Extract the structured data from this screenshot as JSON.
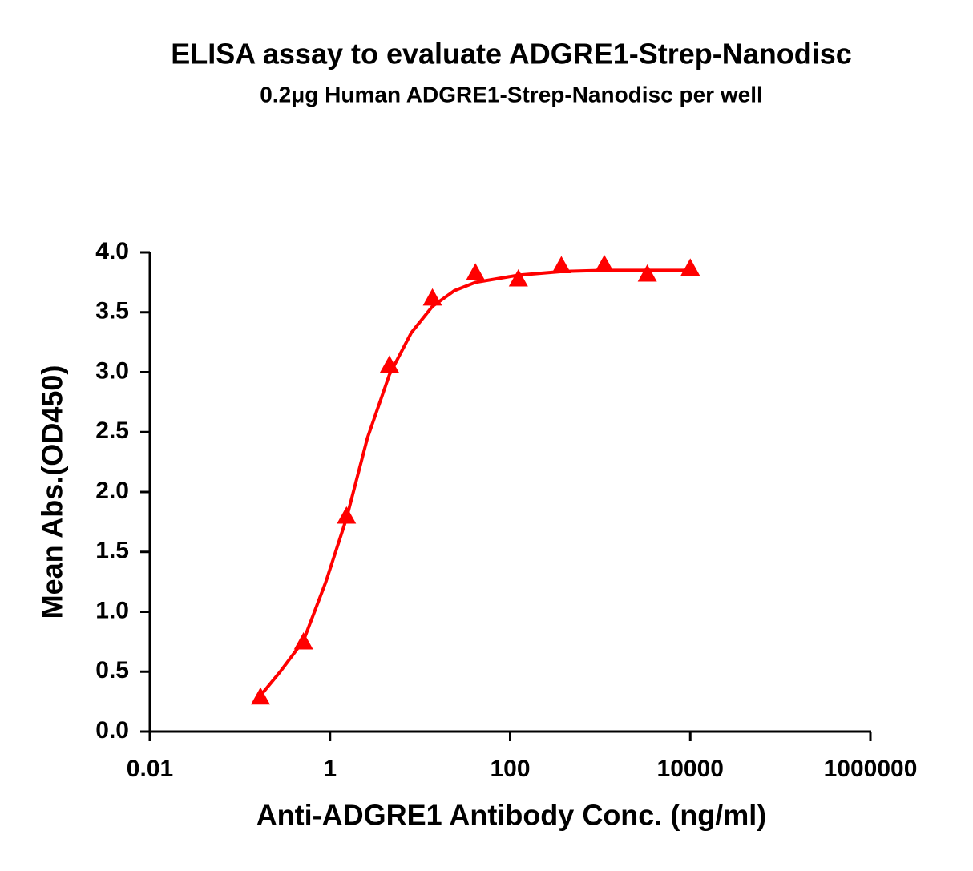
{
  "chart_data": {
    "type": "scatter",
    "title": "ELISA assay to evaluate ADGRE1-Strep-Nanodisc",
    "subtitle": "0.2μg Human ADGRE1-Strep-Nanodisc per well",
    "x_label": "Anti-ADGRE1 Antibody Conc. (ng/ml)",
    "y_label": "Mean Abs.(OD450)",
    "x_scale": "log",
    "color": "#ff0000",
    "x": [
      0.169,
      0.508,
      1.524,
      4.57,
      13.72,
      41.15,
      123.5,
      370.4,
      1111.1,
      3333.3,
      10000
    ],
    "values": [
      0.29,
      0.75,
      1.8,
      3.06,
      3.62,
      3.83,
      3.78,
      3.89,
      3.9,
      3.82,
      3.87
    ],
    "fit_curve": {
      "x": [
        0.169,
        0.28,
        0.508,
        0.9,
        1.524,
        2.6,
        4.57,
        8,
        13.72,
        24,
        41.15,
        123.5,
        370.4,
        1111.1,
        10000
      ],
      "values": [
        0.3,
        0.5,
        0.76,
        1.25,
        1.78,
        2.45,
        2.98,
        3.33,
        3.55,
        3.68,
        3.75,
        3.81,
        3.84,
        3.85,
        3.85
      ]
    },
    "xlim": [
      0.01,
      1000000
    ],
    "xticks": [
      0.01,
      1,
      100,
      10000,
      1000000
    ],
    "ylim": [
      0,
      4
    ],
    "yticks": [
      {
        "value": 0,
        "label": "0.0"
      },
      0.5,
      {
        "value": 1,
        "label": "1.0"
      },
      1.5,
      {
        "value": 2,
        "label": "2.0"
      },
      2.5,
      {
        "value": 3,
        "label": "3.0"
      },
      3.5,
      {
        "value": 4,
        "label": "4.0"
      }
    ]
  }
}
